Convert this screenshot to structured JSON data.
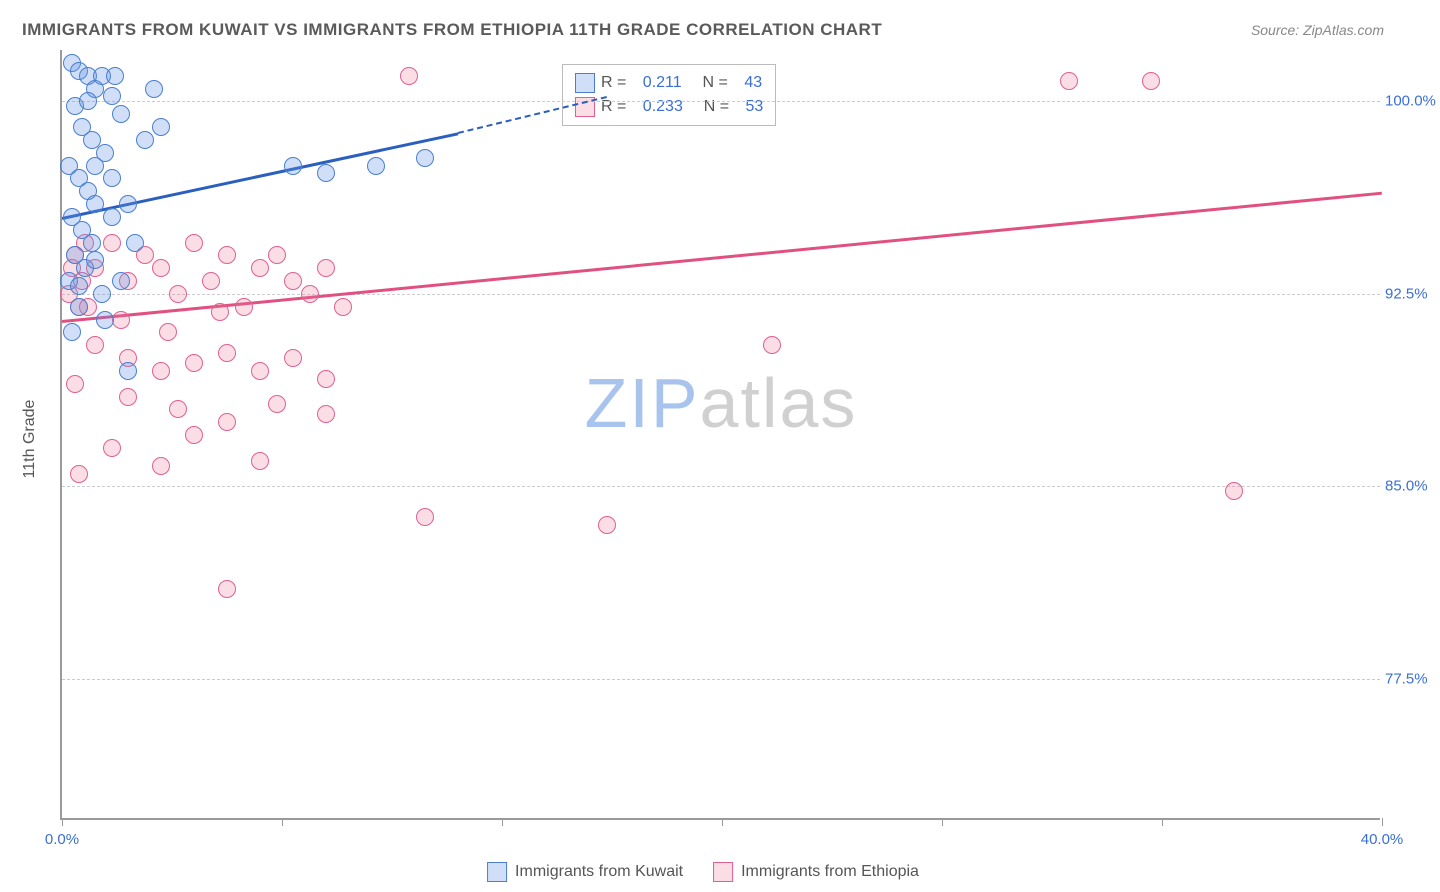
{
  "title": "IMMIGRANTS FROM KUWAIT VS IMMIGRANTS FROM ETHIOPIA 11TH GRADE CORRELATION CHART",
  "source": "Source: ZipAtlas.com",
  "ylabel": "11th Grade",
  "chart": {
    "type": "scatter",
    "xlim": [
      0,
      40
    ],
    "ylim": [
      72,
      102
    ],
    "yticks": [
      77.5,
      85.0,
      92.5,
      100.0
    ],
    "ytick_labels": [
      "77.5%",
      "85.0%",
      "92.5%",
      "100.0%"
    ],
    "xticks": [
      0,
      6.67,
      13.33,
      20,
      26.67,
      33.33,
      40
    ],
    "xtick_labels_shown": {
      "0": "0.0%",
      "40": "40.0%"
    },
    "background_color": "#ffffff",
    "grid_color": "#cccccc",
    "axis_color": "#9a9a9a",
    "tick_label_color": "#3b6fd6",
    "tick_fontsize": 15,
    "title_color": "#5a5a5a",
    "title_fontsize": 17
  },
  "series": {
    "kuwait": {
      "label": "Immigrants from Kuwait",
      "fill": "rgba(100,150,230,0.3)",
      "stroke": "#4a7fd0",
      "line_color": "#2a5fc0",
      "R": "0.211",
      "N": "43",
      "trend": {
        "x1": 0,
        "y1": 95.5,
        "x2_solid": 12,
        "y2_solid": 98.8,
        "x2_dash": 16.5,
        "y2_dash": 100.2
      },
      "points": [
        [
          0.3,
          101.5
        ],
        [
          0.5,
          101.2
        ],
        [
          0.8,
          101.0
        ],
        [
          1.0,
          100.5
        ],
        [
          1.2,
          101.0
        ],
        [
          1.5,
          100.2
        ],
        [
          1.8,
          99.5
        ],
        [
          0.4,
          99.8
        ],
        [
          0.6,
          99.0
        ],
        [
          0.9,
          98.5
        ],
        [
          1.3,
          98.0
        ],
        [
          0.2,
          97.5
        ],
        [
          0.5,
          97.0
        ],
        [
          0.8,
          96.5
        ],
        [
          1.0,
          96.0
        ],
        [
          0.3,
          95.5
        ],
        [
          0.6,
          95.0
        ],
        [
          0.9,
          94.5
        ],
        [
          0.4,
          94.0
        ],
        [
          0.7,
          93.5
        ],
        [
          0.2,
          93.0
        ],
        [
          0.5,
          92.0
        ],
        [
          1.0,
          93.8
        ],
        [
          1.5,
          95.5
        ],
        [
          2.0,
          96.0
        ],
        [
          2.5,
          98.5
        ],
        [
          3.0,
          99.0
        ],
        [
          1.8,
          93.0
        ],
        [
          1.2,
          92.5
        ],
        [
          0.3,
          91.0
        ],
        [
          1.0,
          97.5
        ],
        [
          1.5,
          97.0
        ],
        [
          2.2,
          94.5
        ],
        [
          0.8,
          100.0
        ],
        [
          1.6,
          101.0
        ],
        [
          2.8,
          100.5
        ],
        [
          0.5,
          92.8
        ],
        [
          1.3,
          91.5
        ],
        [
          2.0,
          89.5
        ],
        [
          7.0,
          97.5
        ],
        [
          8.0,
          97.2
        ],
        [
          9.5,
          97.5
        ],
        [
          11.0,
          97.8
        ]
      ]
    },
    "ethiopia": {
      "label": "Immigrants from Ethiopia",
      "fill": "rgba(235,120,150,0.25)",
      "stroke": "#e06090",
      "line_color": "#e05080",
      "R": "0.233",
      "N": "53",
      "trend": {
        "x1": 0,
        "y1": 91.5,
        "x2": 40,
        "y2": 96.5
      },
      "points": [
        [
          0.3,
          93.5
        ],
        [
          0.6,
          93.0
        ],
        [
          0.2,
          92.5
        ],
        [
          0.5,
          92.0
        ],
        [
          0.8,
          92.0
        ],
        [
          0.4,
          94.0
        ],
        [
          0.7,
          94.5
        ],
        [
          1.0,
          93.5
        ],
        [
          1.5,
          94.5
        ],
        [
          2.0,
          93.0
        ],
        [
          2.5,
          94.0
        ],
        [
          3.0,
          93.5
        ],
        [
          3.5,
          92.5
        ],
        [
          4.0,
          94.5
        ],
        [
          4.5,
          93.0
        ],
        [
          5.0,
          94.0
        ],
        [
          5.5,
          92.0
        ],
        [
          6.0,
          93.5
        ],
        [
          6.5,
          94.0
        ],
        [
          7.0,
          93.0
        ],
        [
          7.5,
          92.5
        ],
        [
          8.0,
          93.5
        ],
        [
          8.5,
          92.0
        ],
        [
          1.0,
          90.5
        ],
        [
          2.0,
          90.0
        ],
        [
          3.0,
          89.5
        ],
        [
          4.0,
          89.8
        ],
        [
          5.0,
          90.2
        ],
        [
          6.0,
          89.5
        ],
        [
          7.0,
          90.0
        ],
        [
          8.0,
          89.2
        ],
        [
          2.0,
          88.5
        ],
        [
          3.5,
          88.0
        ],
        [
          5.0,
          87.5
        ],
        [
          6.5,
          88.2
        ],
        [
          8.0,
          87.8
        ],
        [
          1.5,
          86.5
        ],
        [
          4.0,
          87.0
        ],
        [
          0.5,
          85.5
        ],
        [
          3.0,
          85.8
        ],
        [
          6.0,
          86.0
        ],
        [
          5.0,
          81.0
        ],
        [
          10.5,
          101.0
        ],
        [
          11.0,
          83.8
        ],
        [
          16.5,
          83.5
        ],
        [
          21.5,
          90.5
        ],
        [
          30.5,
          100.8
        ],
        [
          33.0,
          100.8
        ],
        [
          35.5,
          84.8
        ],
        [
          0.4,
          89.0
        ],
        [
          1.8,
          91.5
        ],
        [
          3.2,
          91.0
        ],
        [
          4.8,
          91.8
        ]
      ]
    }
  },
  "legend_top": {
    "rows": [
      {
        "series": "kuwait",
        "R_label": "R =",
        "N_label": "N ="
      },
      {
        "series": "ethiopia",
        "R_label": "R =",
        "N_label": "N ="
      }
    ]
  },
  "watermark": {
    "text1": "ZIP",
    "text2": "atlas"
  }
}
